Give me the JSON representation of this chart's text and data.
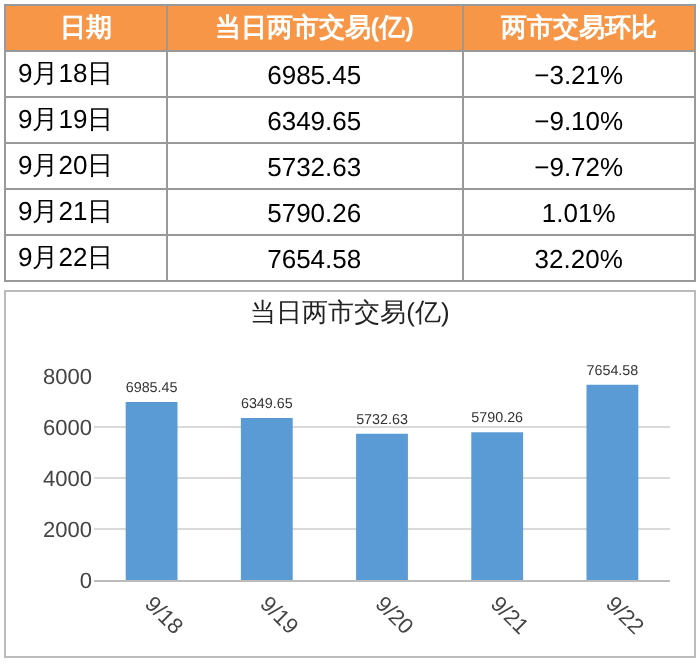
{
  "chart_data": [
    {
      "type": "other",
      "categories": [
        "日期",
        "当日两市交易(亿)",
        "两市交易环比"
      ],
      "cell_labels": [
        [
          "9月18日",
          "6985.45",
          "−3.21%"
        ],
        [
          "9月19日",
          "6349.65",
          "−9.10%"
        ],
        [
          "9月20日",
          "5732.63",
          "−9.72%"
        ],
        [
          "9月21日",
          "5790.26",
          "1.01%"
        ],
        [
          "9月22日",
          "7654.58",
          "32.20%"
        ]
      ],
      "color": "#f79646"
    },
    {
      "type": "bar",
      "title": "当日两市交易(亿)",
      "categories": [
        "9/18",
        "9/19",
        "9/20",
        "9/21",
        "9/22"
      ],
      "values": [
        6985.45,
        6349.65,
        5732.63,
        5790.26,
        7654.58
      ],
      "color": "#5b9bd5",
      "ylim": [
        0,
        8000
      ],
      "yticks": [
        0,
        2000,
        4000,
        6000,
        8000
      ],
      "grid": "y",
      "data_labels": true
    }
  ]
}
